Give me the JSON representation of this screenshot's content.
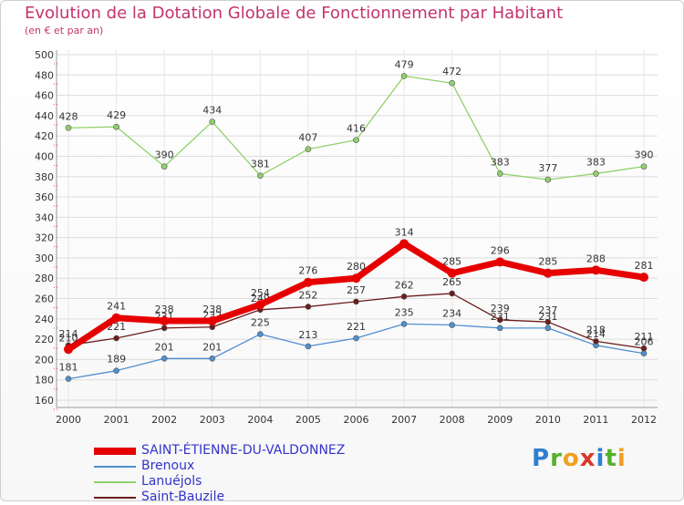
{
  "title": "Evolution de la Dotation Globale de Fonctionnement par Habitant",
  "subtitle": "(en € et par an)",
  "brand": {
    "letters": [
      "P",
      "r",
      "o",
      "x",
      "i",
      "t",
      "i"
    ]
  },
  "chart_data": {
    "type": "line",
    "title": "Evolution de la Dotation Globale de Fonctionnement par Habitant",
    "subtitle": "(en € et par an)",
    "x": [
      2000,
      2001,
      2002,
      2003,
      2004,
      2005,
      2006,
      2007,
      2008,
      2009,
      2010,
      2011,
      2012
    ],
    "ylim": [
      160,
      500
    ],
    "yticks": [
      160,
      180,
      200,
      220,
      240,
      260,
      280,
      300,
      320,
      340,
      360,
      380,
      400,
      420,
      440,
      460,
      480,
      500
    ],
    "grid": true,
    "legend_position": "bottom-left",
    "series": [
      {
        "name": "SAINT-ÉTIENNE-DU-VALDONNEZ",
        "color": "#e60000",
        "values": [
          210,
          241,
          238,
          238,
          254,
          276,
          280,
          314,
          285,
          296,
          285,
          288,
          281
        ]
      },
      {
        "name": "Brenoux",
        "color": "#4f8fcf",
        "values": [
          181,
          189,
          201,
          201,
          225,
          213,
          221,
          235,
          234,
          231,
          231,
          214,
          206
        ]
      },
      {
        "name": "Lanuéjols",
        "color": "#8fd16a",
        "values": [
          428,
          429,
          390,
          434,
          381,
          407,
          416,
          479,
          472,
          383,
          377,
          383,
          390
        ]
      },
      {
        "name": "Saint-Bauzile",
        "color": "#6b1c1c",
        "values": [
          214,
          221,
          231,
          232,
          249,
          252,
          257,
          262,
          265,
          239,
          237,
          218,
          211
        ]
      }
    ]
  }
}
